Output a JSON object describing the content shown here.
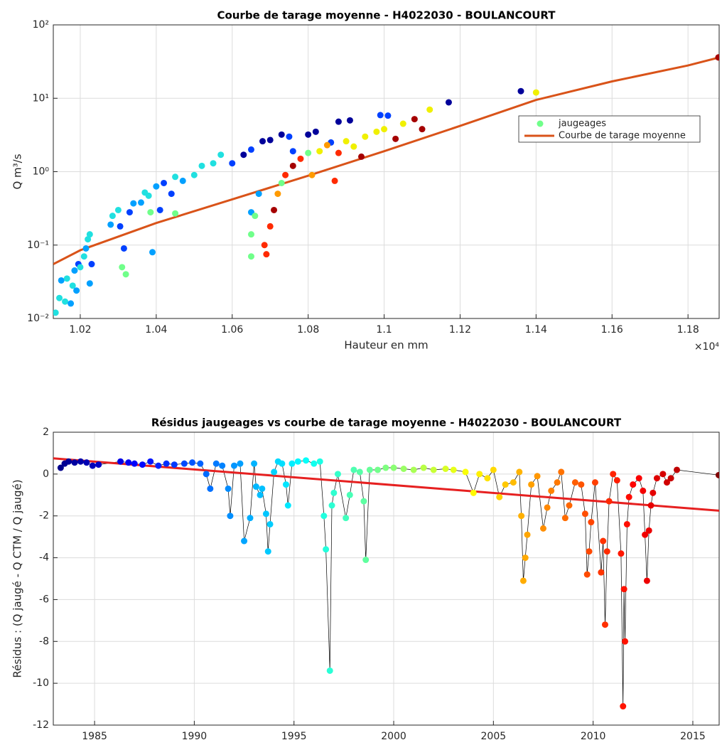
{
  "chart_data": [
    {
      "type": "scatter",
      "title": "Courbe de tarage moyenne - H4022030 - BOULANCOURT",
      "x_label": "Hauteur en mm",
      "x_exponent_label": "×10⁴",
      "y_label": "Q m³/s",
      "xlim": [
        10129,
        11882
      ],
      "ylim": [
        0.01,
        100
      ],
      "yscale": "log",
      "grid": true,
      "xticks": [
        {
          "value": 10200,
          "label": "1.02"
        },
        {
          "value": 10400,
          "label": "1.04"
        },
        {
          "value": 10600,
          "label": "1.06"
        },
        {
          "value": 10800,
          "label": "1.08"
        },
        {
          "value": 11000,
          "label": "1.1"
        },
        {
          "value": 11200,
          "label": "1.12"
        },
        {
          "value": 11400,
          "label": "1.14"
        },
        {
          "value": 11600,
          "label": "1.16"
        },
        {
          "value": 11800,
          "label": "1.18"
        }
      ],
      "yticks": [
        {
          "value": 0.01,
          "label": "10⁻²"
        },
        {
          "value": 0.1,
          "label": "10⁻¹"
        },
        {
          "value": 1,
          "label": "10⁰"
        },
        {
          "value": 10,
          "label": "10¹"
        },
        {
          "value": 100,
          "label": "10²"
        }
      ],
      "series": [
        {
          "name": "jaugeages",
          "type": "scatter",
          "color": "#70ff8a",
          "x": [
            10135,
            10145,
            10150,
            10160,
            10165,
            10175,
            10180,
            10185,
            10190,
            10195,
            10200,
            10210,
            10215,
            10220,
            10225,
            10225,
            10230,
            10280,
            10285,
            10300,
            10305,
            10310,
            10315,
            10320,
            10330,
            10340,
            10360,
            10370,
            10380,
            10385,
            10390,
            10400,
            10410,
            10420,
            10440,
            10450,
            10470,
            10500,
            10520,
            10550,
            10570,
            10600,
            10630,
            10650,
            10680,
            10700,
            10730,
            10750,
            10760,
            10800,
            10820,
            10880,
            10910,
            10990,
            11010,
            10860,
            10650,
            10670,
            10450,
            10650,
            10650,
            10660,
            10685,
            10690,
            10700,
            10710,
            10720,
            10730,
            10740,
            10760,
            10780,
            10800,
            10810,
            10830,
            10850,
            10870,
            10880,
            10900,
            10920,
            10940,
            10950,
            10980,
            11000,
            11030,
            11050,
            11080,
            11100,
            11120,
            11170,
            11360,
            11400,
            11880
          ],
          "values": [
            0.012,
            0.019,
            0.033,
            0.017,
            0.035,
            0.016,
            0.028,
            0.045,
            0.024,
            0.055,
            0.05,
            0.07,
            0.09,
            0.12,
            0.14,
            0.03,
            0.055,
            0.19,
            0.25,
            0.3,
            0.18,
            0.05,
            0.09,
            0.04,
            0.28,
            0.37,
            0.38,
            0.52,
            0.47,
            0.28,
            0.08,
            0.63,
            0.3,
            0.7,
            0.5,
            0.85,
            0.75,
            0.9,
            1.2,
            1.3,
            1.7,
            1.3,
            1.7,
            2.0,
            2.6,
            2.7,
            3.2,
            3.0,
            1.9,
            3.2,
            3.5,
            4.8,
            5.0,
            5.9,
            5.8,
            2.5,
            0.28,
            0.5,
            0.27,
            0.14,
            0.07,
            0.25,
            0.1,
            0.075,
            0.18,
            0.3,
            0.5,
            0.7,
            0.9,
            1.2,
            1.5,
            1.8,
            0.9,
            1.9,
            2.3,
            0.75,
            1.8,
            2.6,
            2.2,
            1.6,
            3.0,
            3.5,
            3.8,
            2.8,
            4.5,
            5.2,
            3.8,
            7.0,
            8.8,
            12.5,
            12,
            36
          ],
          "colors": [
            "#20e0e0",
            "#20e0e0",
            "#00a0ff",
            "#20e0e0",
            "#20e0e0",
            "#00a0ff",
            "#20e0e0",
            "#00a0ff",
            "#00a0ff",
            "#0040ff",
            "#20e0e0",
            "#20e0e0",
            "#00a0ff",
            "#20e0e0",
            "#20e0e0",
            "#00a0ff",
            "#0040ff",
            "#00a0ff",
            "#20e0e0",
            "#20e0e0",
            "#0040ff",
            "#70ff8a",
            "#0040ff",
            "#70ff8a",
            "#0040ff",
            "#00a0ff",
            "#00a0ff",
            "#20e0e0",
            "#20e0e0",
            "#70ff8a",
            "#00a0ff",
            "#00a0ff",
            "#0040ff",
            "#0040ff",
            "#0040ff",
            "#20e0e0",
            "#00a0ff",
            "#20e0e0",
            "#20e0e0",
            "#20e0e0",
            "#20e0e0",
            "#0040ff",
            "#00009a",
            "#0040ff",
            "#00009a",
            "#00009a",
            "#00009a",
            "#0040ff",
            "#0040ff",
            "#00009a",
            "#00009a",
            "#00009a",
            "#00009a",
            "#0040ff",
            "#0040ff",
            "#0040ff",
            "#00a0ff",
            "#00a0ff",
            "#70ff8a",
            "#70ff8a",
            "#70ff8a",
            "#70ff8a",
            "#ff2a00",
            "#ff2a00",
            "#ff2a00",
            "#a50000",
            "#ff9a00",
            "#70ff8a",
            "#ff2a00",
            "#a50000",
            "#ff2a00",
            "#70ff8a",
            "#ff9a00",
            "#f0f000",
            "#ff9a00",
            "#ff2a00",
            "#ff2a00",
            "#f0f000",
            "#f0f000",
            "#a50000",
            "#f0f000",
            "#f0f000",
            "#f0f000",
            "#a50000",
            "#f0f000",
            "#a50000",
            "#a50000",
            "#f0f000",
            "#00009a",
            "#00009a",
            "#f0f000",
            "#a50000"
          ]
        },
        {
          "name": "Courbe de tarage moyenne",
          "type": "line",
          "color": "#d95319",
          "x": [
            10129,
            10200,
            10400,
            10600,
            10800,
            11000,
            11200,
            11400,
            11600,
            11800,
            11882
          ],
          "values": [
            0.055,
            0.085,
            0.2,
            0.42,
            0.88,
            1.9,
            4.2,
            9.5,
            17,
            28,
            36
          ]
        }
      ]
    },
    {
      "type": "line",
      "title": "Résidus jaugeages vs courbe de tarage moyenne - H4022030 - BOULANCOURT",
      "y_label": "Résidus : (Q jaugé - Q CTM / Q jaugé)",
      "xlim": [
        1982.93,
        2016.32
      ],
      "ylim": [
        -12,
        2
      ],
      "grid": true,
      "colormap": "jet",
      "xticks": [
        1985,
        1990,
        1995,
        2000,
        2005,
        2010,
        2015
      ],
      "yticks": [
        -12,
        -10,
        -8,
        -6,
        -4,
        -2,
        0,
        2
      ],
      "series": [
        {
          "type": "line",
          "color": "#000000",
          "x": [
            1983.3,
            1983.5,
            1983.7,
            1984,
            1984.3,
            1984.6,
            1984.9,
            1985.2,
            1986.3,
            1986.7,
            1987,
            1987.4,
            1987.8,
            1988.2,
            1988.6,
            1989,
            1989.5,
            1989.9,
            1990.3,
            1990.6,
            1990.8,
            1991.1,
            1991.4,
            1991.7,
            1991.8,
            1992,
            1992.3,
            1992.5,
            1992.8,
            1993,
            1993.1,
            1993.3,
            1993.4,
            1993.6,
            1993.7,
            1993.8,
            1994,
            1994.2,
            1994.4,
            1994.6,
            1994.7,
            1994.9,
            1995.2,
            1995.6,
            1996,
            1996.3,
            1996.5,
            1996.6,
            1996.8,
            1996.9,
            1997,
            1997.2,
            1997.6,
            1997.8,
            1998,
            1998.3,
            1998.5,
            1998.6,
            1998.8,
            1999.2,
            1999.6,
            2000,
            2000.5,
            2001,
            2001.5,
            2002,
            2002.6,
            2003,
            2003.6,
            2004,
            2004.3,
            2004.7,
            2005,
            2005.3,
            2005.6,
            2006,
            2006.3,
            2006.4,
            2006.5,
            2006.6,
            2006.7,
            2006.9,
            2007.2,
            2007.5,
            2007.7,
            2007.9,
            2008.2,
            2008.4,
            2008.6,
            2008.8,
            2009.1,
            2009.4,
            2009.6,
            2009.7,
            2009.8,
            2009.9,
            2010.1,
            2010.4,
            2010.5,
            2010.6,
            2010.7,
            2010.8,
            2011,
            2011.2,
            2011.4,
            2011.5,
            2011.55,
            2011.6,
            2011.7,
            2011.8,
            2012,
            2012.3,
            2012.5,
            2012.6,
            2012.7,
            2012.8,
            2012.9,
            2013,
            2013.2,
            2013.5,
            2013.7,
            2013.9,
            2014.2,
            2016.3
          ],
          "values": [
            0.3,
            0.5,
            0.6,
            0.55,
            0.6,
            0.55,
            0.4,
            0.45,
            0.6,
            0.55,
            0.5,
            0.45,
            0.6,
            0.4,
            0.5,
            0.45,
            0.5,
            0.55,
            0.5,
            0.0,
            -0.7,
            0.5,
            0.4,
            -0.7,
            -2.0,
            0.4,
            0.5,
            -3.2,
            -2.1,
            0.5,
            -0.6,
            -1.0,
            -0.7,
            -1.9,
            -3.7,
            -2.4,
            0.1,
            0.6,
            0.5,
            -0.5,
            -1.5,
            0.5,
            0.6,
            0.65,
            0.5,
            0.6,
            -2.0,
            -3.6,
            -9.4,
            -1.5,
            -0.9,
            0.0,
            -2.1,
            -1.0,
            0.2,
            0.1,
            -1.3,
            -4.1,
            0.2,
            0.2,
            0.3,
            0.3,
            0.25,
            0.2,
            0.3,
            0.2,
            0.25,
            0.2,
            0.1,
            -0.9,
            0.0,
            -0.2,
            0.2,
            -1.1,
            -0.5,
            -0.4,
            0.1,
            -2.0,
            -5.1,
            -4.0,
            -2.9,
            -0.5,
            -0.1,
            -2.6,
            -1.6,
            -0.8,
            -0.4,
            0.1,
            -2.1,
            -1.5,
            -0.4,
            -0.5,
            -1.9,
            -4.8,
            -3.7,
            -2.3,
            -0.4,
            -4.7,
            -3.2,
            -7.2,
            -3.7,
            -1.3,
            0.0,
            -0.3,
            -3.8,
            -11.1,
            -5.5,
            -8.0,
            -2.4,
            -1.1,
            -0.5,
            -0.2,
            -0.8,
            -2.9,
            -5.1,
            -2.7,
            -1.5,
            -0.9,
            -0.2,
            0.0,
            -0.4,
            -0.2,
            0.2,
            -0.05
          ]
        },
        {
          "type": "trend",
          "color": "#e62020",
          "x": [
            1982.93,
            2016.32
          ],
          "values": [
            0.75,
            -1.75
          ]
        }
      ]
    }
  ]
}
